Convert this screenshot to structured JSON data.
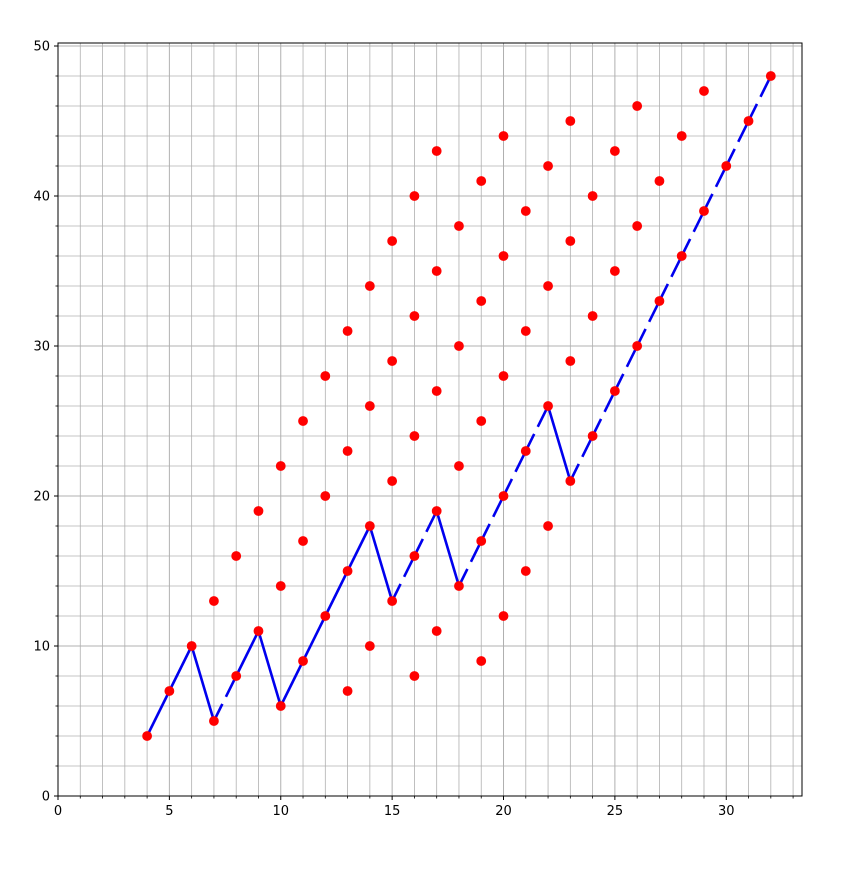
{
  "chart_data": {
    "type": "scatter",
    "title": "",
    "xlabel": "",
    "ylabel": "",
    "xlim": [
      0,
      33.4
    ],
    "ylim": [
      0,
      50.2
    ],
    "x_major_ticks": [
      0,
      5,
      10,
      15,
      20,
      25,
      30
    ],
    "y_major_ticks": [
      0,
      10,
      20,
      30,
      40,
      50
    ],
    "x_tick_labels": [
      "0",
      "5",
      "10",
      "15",
      "20",
      "25",
      "30"
    ],
    "y_tick_labels": [
      "0",
      "10",
      "20",
      "30",
      "40",
      "50"
    ],
    "grid": "major and minor",
    "colors": {
      "points": "#ff0000",
      "path": "#0000ee",
      "grid_major": "#b0b0b0",
      "grid_minor": "#b0b0b0",
      "axes": "#000000"
    },
    "series": [
      {
        "kind": "points",
        "points": [
          [
            4,
            4
          ],
          [
            5,
            7
          ],
          [
            6,
            10
          ],
          [
            7,
            5
          ],
          [
            7,
            13
          ],
          [
            8,
            8
          ],
          [
            8,
            16
          ],
          [
            9,
            11
          ],
          [
            9,
            19
          ],
          [
            10,
            6
          ],
          [
            10,
            14
          ],
          [
            10,
            22
          ],
          [
            11,
            9
          ],
          [
            11,
            17
          ],
          [
            11,
            25
          ],
          [
            12,
            12
          ],
          [
            12,
            20
          ],
          [
            12,
            28
          ],
          [
            13,
            7
          ],
          [
            13,
            15
          ],
          [
            13,
            23
          ],
          [
            13,
            31
          ],
          [
            14,
            10
          ],
          [
            14,
            18
          ],
          [
            14,
            26
          ],
          [
            14,
            34
          ],
          [
            15,
            13
          ],
          [
            15,
            21
          ],
          [
            15,
            29
          ],
          [
            15,
            37
          ],
          [
            16,
            8
          ],
          [
            16,
            16
          ],
          [
            16,
            24
          ],
          [
            16,
            32
          ],
          [
            16,
            40
          ],
          [
            17,
            11
          ],
          [
            17,
            19
          ],
          [
            17,
            27
          ],
          [
            17,
            35
          ],
          [
            17,
            43
          ],
          [
            18,
            14
          ],
          [
            18,
            22
          ],
          [
            18,
            30
          ],
          [
            18,
            38
          ],
          [
            19,
            9
          ],
          [
            19,
            17
          ],
          [
            19,
            25
          ],
          [
            19,
            33
          ],
          [
            19,
            41
          ],
          [
            20,
            12
          ],
          [
            20,
            20
          ],
          [
            20,
            28
          ],
          [
            20,
            36
          ],
          [
            20,
            44
          ],
          [
            21,
            15
          ],
          [
            21,
            23
          ],
          [
            21,
            31
          ],
          [
            21,
            39
          ],
          [
            22,
            18
          ],
          [
            22,
            26
          ],
          [
            22,
            34
          ],
          [
            22,
            42
          ],
          [
            23,
            21
          ],
          [
            23,
            29
          ],
          [
            23,
            37
          ],
          [
            23,
            45
          ],
          [
            24,
            24
          ],
          [
            24,
            32
          ],
          [
            24,
            40
          ],
          [
            25,
            27
          ],
          [
            25,
            35
          ],
          [
            25,
            43
          ],
          [
            26,
            30
          ],
          [
            26,
            38
          ],
          [
            26,
            46
          ],
          [
            27,
            33
          ],
          [
            27,
            41
          ],
          [
            28,
            36
          ],
          [
            28,
            44
          ],
          [
            29,
            39
          ],
          [
            29,
            47
          ],
          [
            30,
            42
          ],
          [
            31,
            45
          ],
          [
            32,
            48
          ]
        ]
      },
      {
        "kind": "path",
        "points": [
          [
            4,
            4
          ],
          [
            5,
            7
          ],
          [
            6,
            10
          ],
          [
            7,
            5
          ],
          [
            8,
            8
          ],
          [
            9,
            11
          ],
          [
            10,
            6
          ],
          [
            11,
            9
          ],
          [
            12,
            12
          ],
          [
            13,
            15
          ],
          [
            14,
            18
          ],
          [
            15,
            13
          ],
          [
            16,
            16
          ],
          [
            17,
            19
          ],
          [
            18,
            14
          ],
          [
            19,
            17
          ],
          [
            20,
            20
          ],
          [
            21,
            23
          ],
          [
            22,
            26
          ],
          [
            23,
            21
          ],
          [
            24,
            24
          ],
          [
            25,
            27
          ],
          [
            26,
            30
          ],
          [
            27,
            33
          ],
          [
            28,
            36
          ],
          [
            29,
            39
          ],
          [
            30,
            42
          ],
          [
            31,
            45
          ],
          [
            32,
            48
          ]
        ],
        "segment_styles": [
          "solid",
          "solid",
          "solid",
          "dashed",
          "solid",
          "solid",
          "solid",
          "solid",
          "solid",
          "solid",
          "solid",
          "dashed",
          "dashed",
          "solid",
          "dashed",
          "dashed",
          "dashed",
          "dashed",
          "solid",
          "dashed",
          "dashed",
          "dashed",
          "dashed",
          "dashed",
          "dashed",
          "dashed",
          "dashed",
          "dashed"
        ]
      }
    ]
  }
}
